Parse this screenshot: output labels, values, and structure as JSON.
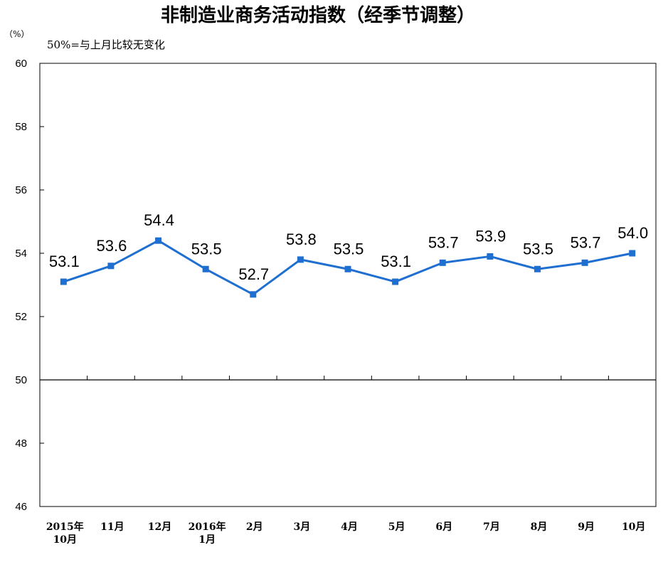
{
  "chart_data": {
    "type": "line",
    "title": "非制造业商务活动指数（经季节调整）",
    "unit": "（%）",
    "note": "50%=与上月比较无变化",
    "categories": [
      [
        "2015年",
        "10月"
      ],
      [
        "11月"
      ],
      [
        "12月"
      ],
      [
        "2016年",
        "1月"
      ],
      [
        "2月"
      ],
      [
        "3月"
      ],
      [
        "4月"
      ],
      [
        "5月"
      ],
      [
        "6月"
      ],
      [
        "7月"
      ],
      [
        "8月"
      ],
      [
        "9月"
      ],
      [
        "10月"
      ]
    ],
    "series": [
      {
        "values": [
          53.1,
          53.6,
          54.4,
          53.5,
          52.7,
          53.8,
          53.5,
          53.1,
          53.7,
          53.9,
          53.5,
          53.7,
          54.0
        ],
        "labels": [
          "53.1",
          "53.6",
          "54.4",
          "53.5",
          "52.7",
          "53.8",
          "53.5",
          "53.1",
          "53.7",
          "53.9",
          "53.5",
          "53.7",
          "54.0"
        ],
        "color": "#1f6fd1"
      }
    ],
    "ylim": [
      46,
      60
    ],
    "yticks": [
      60,
      58,
      56,
      54,
      52,
      50,
      48,
      46
    ],
    "reference_line": 50,
    "grid": false,
    "legend": "none"
  }
}
